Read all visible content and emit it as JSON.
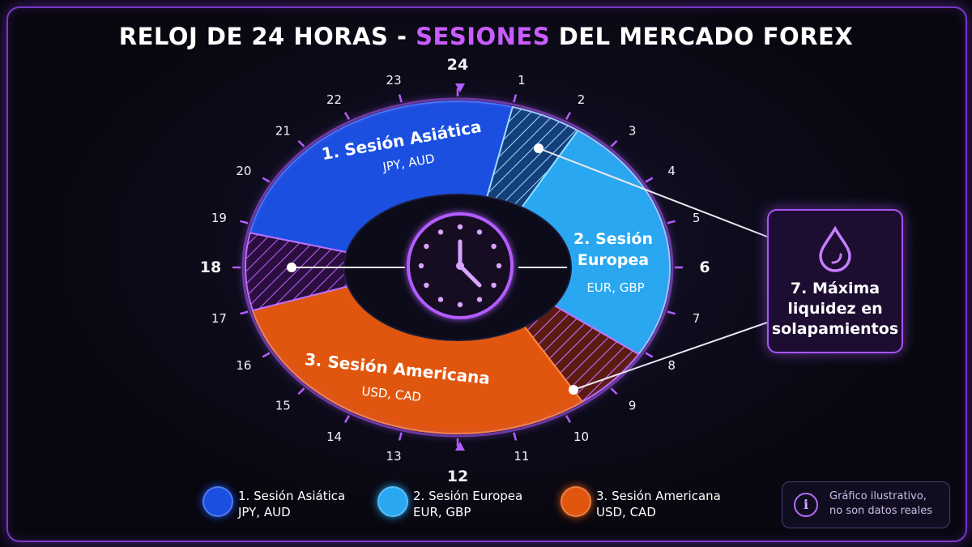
{
  "title": {
    "part1": "RELOJ DE 24 HORAS - ",
    "highlight": "SESIONES",
    "part2": " DEL MERCADO FOREX"
  },
  "hours": [
    "1",
    "2",
    "3",
    "4",
    "5",
    "6",
    "7",
    "8",
    "9",
    "10",
    "11",
    "12",
    "13",
    "14",
    "15",
    "16",
    "17",
    "18",
    "19",
    "20",
    "21",
    "22",
    "23",
    "24"
  ],
  "sessions": {
    "asian": {
      "name": "1. Sesión Asiática",
      "pairs": "JPY, AUD",
      "color": "#1a4fe0"
    },
    "european": {
      "name_line1": "2. Sesión",
      "name_line2": "Europea",
      "pairs": "EUR, GBP",
      "color": "#29a7f0"
    },
    "american": {
      "name": "3. Sesión Americana",
      "pairs": "USD, CAD",
      "color": "#e0560f"
    }
  },
  "callout": {
    "line1": "7. Máxima",
    "line2": "liquidez en",
    "line3": "solapamientos",
    "icon": "liquidity-drop-icon"
  },
  "legend": [
    {
      "label": "1. Sesión Asiática",
      "pairs": "JPY, AUD",
      "color": "#1a4fe0"
    },
    {
      "label": "2. Sesión Europea",
      "pairs": "EUR, GBP",
      "color": "#29a7f0"
    },
    {
      "label": "3. Sesión Americana",
      "pairs": "USD, CAD",
      "color": "#e0560f"
    }
  ],
  "note": {
    "line1": "Gráfico ilustrativo,",
    "line2": "no son datos reales",
    "icon": "info-icon"
  },
  "colors": {
    "accent": "#c85cff",
    "frame": "#7a38c8",
    "overlap_hatch": "#6b2a8f"
  }
}
